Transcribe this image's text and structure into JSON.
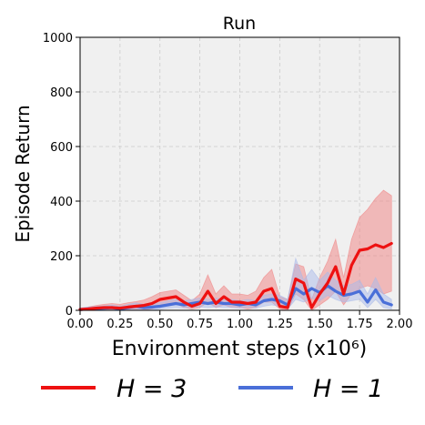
{
  "chart_data": {
    "type": "line",
    "title": "Run",
    "xlabel": "Environment steps (x10⁶)",
    "ylabel": "Episode Return",
    "xlim": [
      0,
      2.0
    ],
    "ylim": [
      0,
      1000
    ],
    "x_ticks": [
      0.0,
      0.25,
      0.5,
      0.75,
      1.0,
      1.25,
      1.5,
      1.75,
      2.0
    ],
    "x_tick_labels": [
      "0.00",
      "0.25",
      "0.50",
      "0.75",
      "1.00",
      "1.25",
      "1.50",
      "1.75",
      "2.00"
    ],
    "y_ticks": [
      0,
      200,
      400,
      600,
      800,
      1000
    ],
    "y_tick_labels": [
      "0",
      "200",
      "400",
      "600",
      "800",
      "1000"
    ],
    "grid": true,
    "background_color": "#f0f0f0",
    "legend_position": "bottom",
    "x": [
      0.0,
      0.05,
      0.1,
      0.15,
      0.2,
      0.25,
      0.3,
      0.35,
      0.4,
      0.45,
      0.5,
      0.55,
      0.6,
      0.65,
      0.7,
      0.75,
      0.8,
      0.85,
      0.9,
      0.95,
      1.0,
      1.05,
      1.1,
      1.15,
      1.2,
      1.25,
      1.3,
      1.35,
      1.4,
      1.45,
      1.5,
      1.55,
      1.6,
      1.65,
      1.7,
      1.75,
      1.8,
      1.85,
      1.9,
      1.95
    ],
    "series": [
      {
        "name": "H = 3",
        "color": "#ee1111",
        "band_color": "#f08080",
        "values": [
          3,
          5,
          8,
          10,
          10,
          8,
          12,
          15,
          18,
          25,
          40,
          45,
          50,
          30,
          15,
          25,
          70,
          25,
          50,
          30,
          30,
          25,
          30,
          70,
          80,
          15,
          10,
          115,
          100,
          10,
          60,
          100,
          160,
          60,
          165,
          220,
          225,
          240,
          230,
          245
        ],
        "lower": [
          0,
          0,
          0,
          0,
          0,
          0,
          0,
          0,
          0,
          5,
          15,
          20,
          25,
          10,
          5,
          10,
          30,
          10,
          20,
          10,
          10,
          5,
          10,
          30,
          30,
          5,
          0,
          60,
          40,
          0,
          20,
          40,
          70,
          20,
          60,
          80,
          90,
          80,
          60,
          70
        ],
        "upper": [
          8,
          12,
          18,
          22,
          25,
          22,
          28,
          32,
          38,
          50,
          65,
          70,
          75,
          55,
          35,
          60,
          130,
          60,
          90,
          60,
          60,
          55,
          70,
          120,
          150,
          50,
          40,
          170,
          160,
          40,
          120,
          180,
          260,
          120,
          260,
          340,
          370,
          410,
          440,
          420
        ]
      },
      {
        "name": "H = 1",
        "color": "#4a6fd8",
        "band_color": "#a9b9ea",
        "values": [
          3,
          5,
          6,
          8,
          10,
          5,
          10,
          15,
          10,
          12,
          15,
          20,
          25,
          20,
          25,
          30,
          25,
          30,
          25,
          25,
          20,
          25,
          20,
          35,
          40,
          35,
          20,
          80,
          60,
          80,
          65,
          90,
          70,
          55,
          60,
          70,
          30,
          75,
          30,
          20
        ],
        "lower": [
          0,
          0,
          0,
          0,
          0,
          0,
          0,
          0,
          0,
          0,
          5,
          8,
          10,
          8,
          10,
          12,
          10,
          12,
          10,
          10,
          8,
          10,
          8,
          15,
          20,
          15,
          5,
          40,
          30,
          45,
          35,
          55,
          40,
          30,
          35,
          40,
          10,
          40,
          10,
          5
        ],
        "upper": [
          8,
          12,
          14,
          16,
          20,
          14,
          22,
          28,
          22,
          25,
          28,
          35,
          40,
          35,
          40,
          45,
          40,
          45,
          40,
          40,
          35,
          40,
          35,
          55,
          60,
          55,
          40,
          190,
          110,
          150,
          110,
          140,
          110,
          90,
          95,
          110,
          60,
          120,
          60,
          40
        ]
      }
    ]
  }
}
